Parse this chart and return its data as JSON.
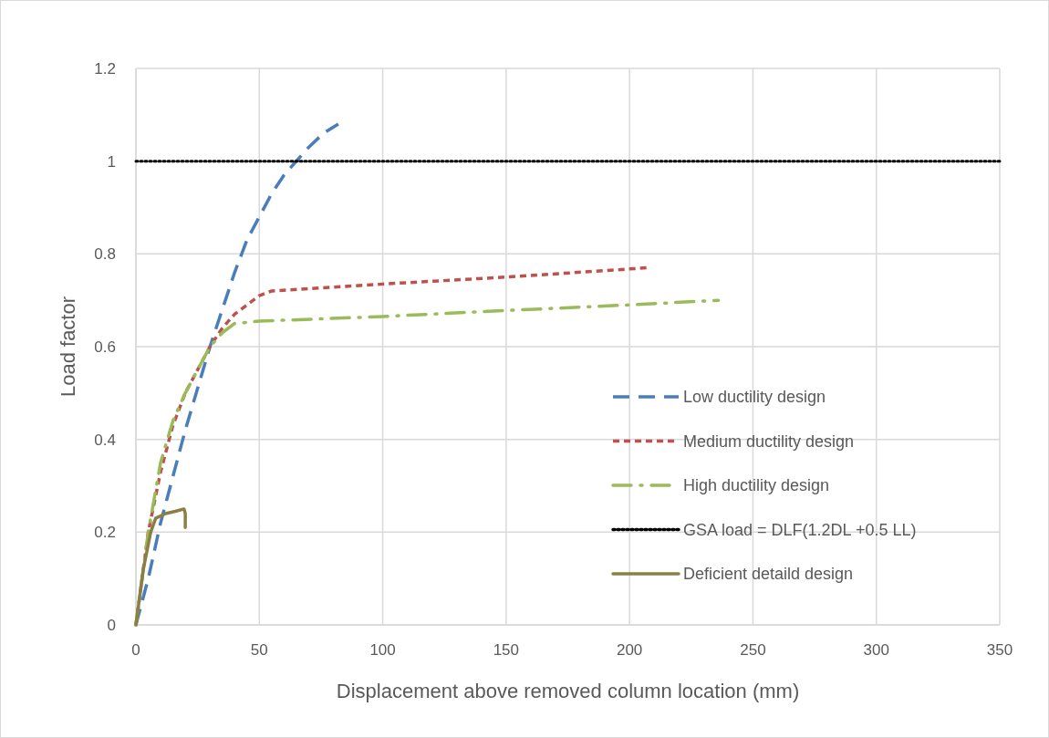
{
  "chart_data": {
    "type": "line",
    "xlabel": "Displacement above removed column location (mm)",
    "ylabel": "Load factor",
    "xlim": [
      0,
      350
    ],
    "xticks": [
      0,
      50,
      100,
      150,
      200,
      250,
      300,
      350
    ],
    "ylim": [
      0,
      1.2
    ],
    "yticks": [
      0,
      0.2,
      0.4,
      0.6,
      0.8,
      1,
      1.2
    ],
    "grid": true,
    "legend": "right",
    "series": [
      {
        "name": "Low ductility design",
        "color": "#4a7ebb",
        "line_style": "longdash",
        "x": [
          0,
          5,
          10,
          15,
          20,
          25,
          30,
          35,
          40,
          45,
          50,
          55,
          60,
          65,
          70,
          76,
          82
        ],
        "values": [
          0,
          0.1,
          0.22,
          0.32,
          0.42,
          0.51,
          0.6,
          0.68,
          0.76,
          0.83,
          0.88,
          0.93,
          0.97,
          1.0,
          1.03,
          1.06,
          1.08
        ]
      },
      {
        "name": "Medium ductility design",
        "color": "#c0504d",
        "line_style": "dashed",
        "x": [
          0,
          5,
          10,
          15,
          20,
          25,
          30,
          35,
          40,
          45,
          50,
          55,
          100,
          150,
          207
        ],
        "values": [
          0,
          0.2,
          0.33,
          0.43,
          0.5,
          0.55,
          0.6,
          0.64,
          0.67,
          0.69,
          0.71,
          0.72,
          0.735,
          0.75,
          0.77
        ]
      },
      {
        "name": "High ductility design",
        "color": "#9bbb59",
        "line_style": "dashdot",
        "x": [
          0,
          5,
          10,
          15,
          20,
          25,
          30,
          35,
          40,
          50,
          100,
          150,
          200,
          236
        ],
        "values": [
          0,
          0.2,
          0.35,
          0.44,
          0.5,
          0.55,
          0.6,
          0.63,
          0.65,
          0.655,
          0.665,
          0.678,
          0.69,
          0.7
        ]
      },
      {
        "name": "GSA load = DLF(1.2DL +0.5 LL)",
        "color": "#000000",
        "line_style": "dotted",
        "x": [
          0,
          350
        ],
        "values": [
          1,
          1
        ]
      },
      {
        "name": "Deficient detaild design",
        "color": "#8a7f45",
        "line_style": "solid",
        "x": [
          0,
          3,
          6,
          8,
          12,
          16,
          19.5,
          20,
          20
        ],
        "values": [
          0,
          0.12,
          0.2,
          0.23,
          0.24,
          0.245,
          0.25,
          0.24,
          0.21
        ]
      }
    ]
  }
}
